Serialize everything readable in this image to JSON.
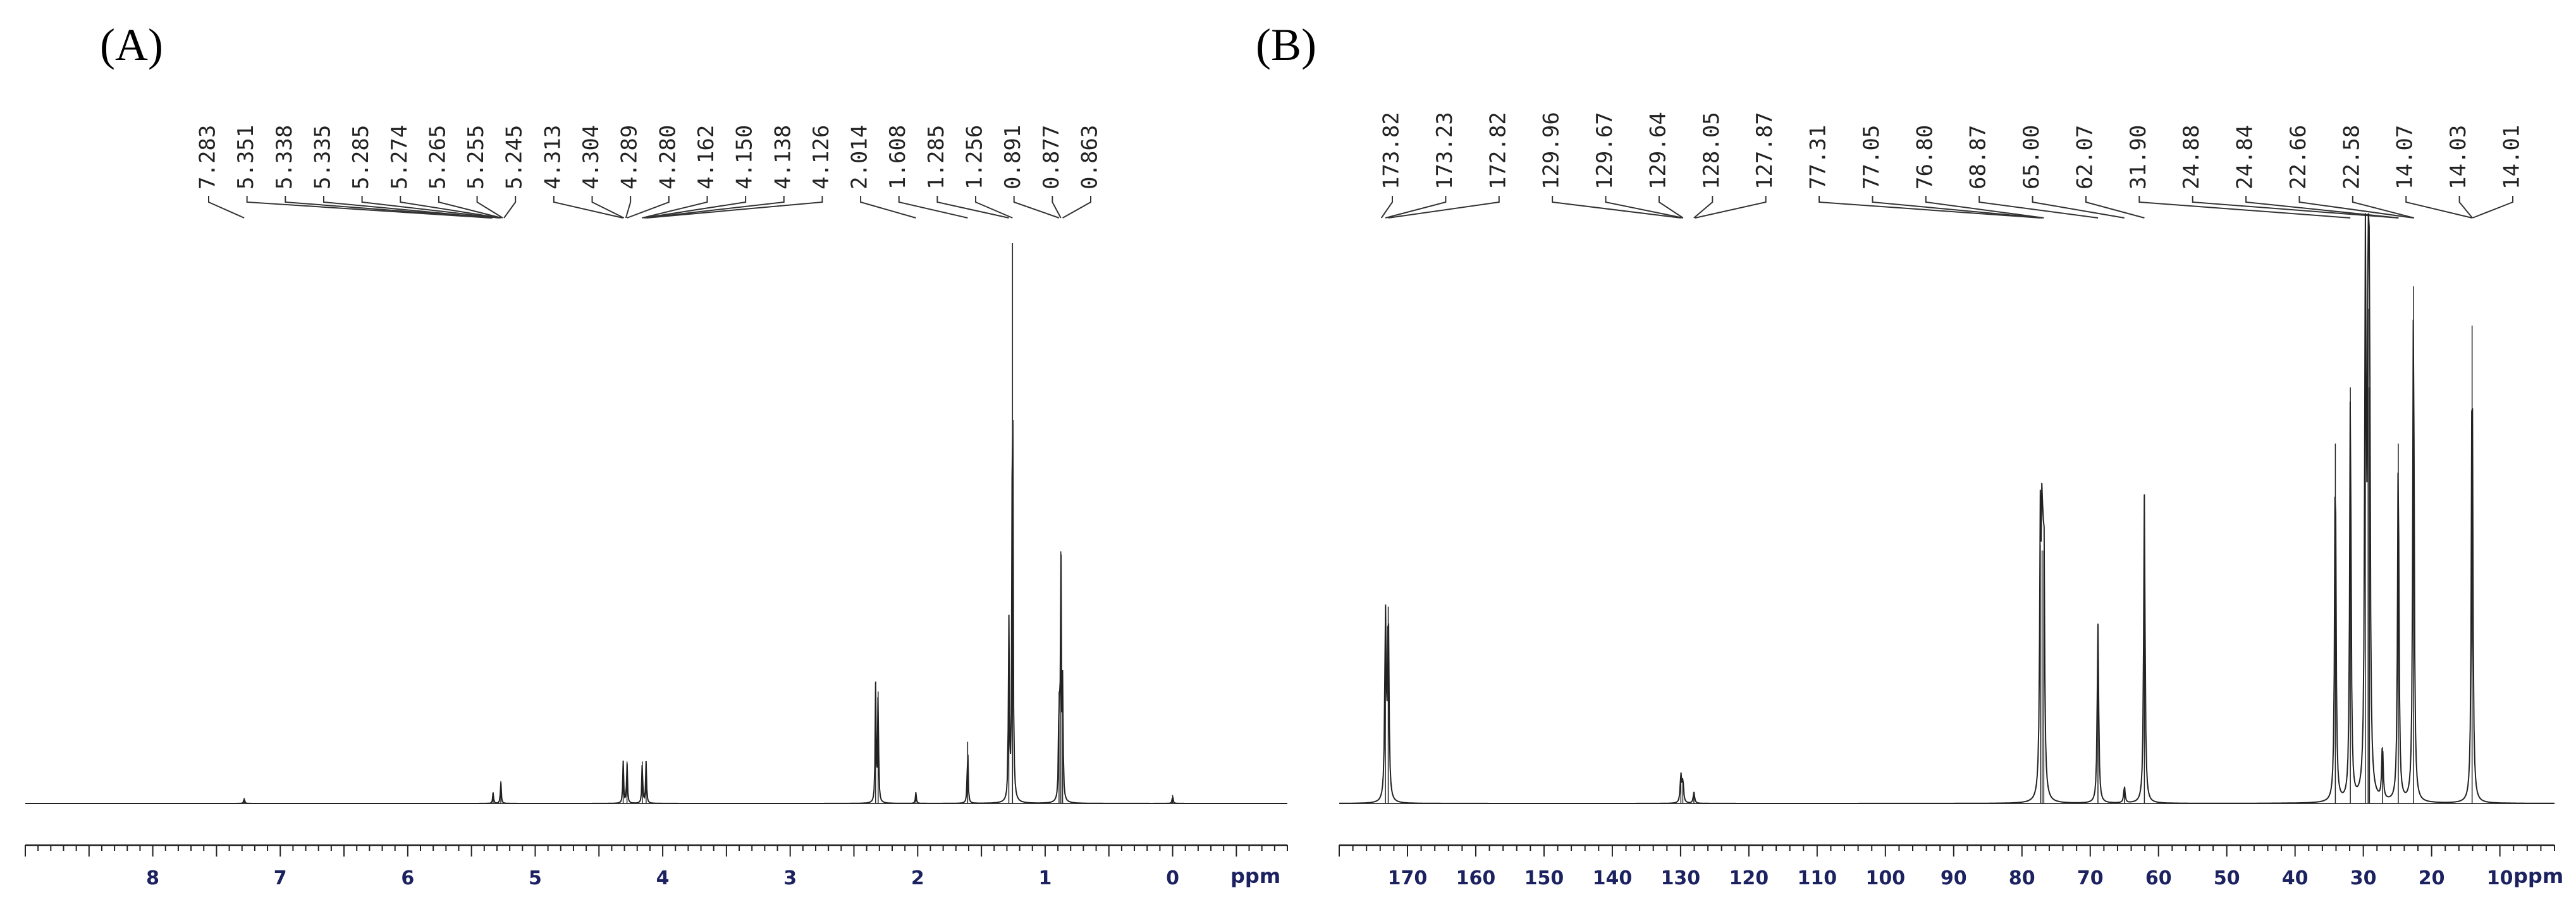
{
  "chart_data": [
    {
      "type": "line",
      "panel_label": "(A)",
      "xlabel": "ppm",
      "xlim": [
        9,
        -0.9
      ],
      "reversed_x": true,
      "ticks": [
        8,
        7,
        6,
        5,
        4,
        3,
        2,
        1,
        0
      ],
      "tick_labels": [
        "8",
        "7",
        "6",
        "5",
        "4",
        "3",
        "2",
        "1",
        "0"
      ],
      "peak_labels": [
        "7.283",
        "5.351",
        "5.338",
        "5.335",
        "5.285",
        "5.274",
        "5.265",
        "5.255",
        "5.245",
        "4.313",
        "4.304",
        "4.289",
        "4.280",
        "4.162",
        "4.150",
        "4.138",
        "4.126",
        "2.014",
        "1.608",
        "1.285",
        "1.256",
        "0.891",
        "0.877",
        "0.863"
      ],
      "peaks": [
        {
          "x": 7.283,
          "y": 0.01
        },
        {
          "x": 5.33,
          "y": 0.02
        },
        {
          "x": 5.27,
          "y": 0.04
        },
        {
          "x": 4.31,
          "y": 0.075
        },
        {
          "x": 4.28,
          "y": 0.075
        },
        {
          "x": 4.16,
          "y": 0.075
        },
        {
          "x": 4.13,
          "y": 0.075
        },
        {
          "x": 2.33,
          "y": 0.21
        },
        {
          "x": 2.31,
          "y": 0.2
        },
        {
          "x": 2.014,
          "y": 0.02
        },
        {
          "x": 1.608,
          "y": 0.11
        },
        {
          "x": 1.285,
          "y": 0.33
        },
        {
          "x": 1.256,
          "y": 1.0
        },
        {
          "x": 0.891,
          "y": 0.2
        },
        {
          "x": 0.877,
          "y": 0.45
        },
        {
          "x": 0.863,
          "y": 0.2
        },
        {
          "x": 0.0,
          "y": 0.015
        }
      ]
    },
    {
      "type": "line",
      "panel_label": "(B)",
      "xlabel": "ppm",
      "xlim": [
        180,
        2
      ],
      "reversed_x": true,
      "ticks": [
        170,
        160,
        150,
        140,
        130,
        120,
        110,
        100,
        90,
        80,
        70,
        60,
        50,
        40,
        30,
        20,
        10
      ],
      "tick_labels": [
        "170",
        "160",
        "150",
        "140",
        "130",
        "120",
        "110",
        "100",
        "90",
        "80",
        "70",
        "60",
        "50",
        "40",
        "30",
        "20",
        "10"
      ],
      "peak_labels": [
        "173.82",
        "173.23",
        "172.82",
        "129.96",
        "129.67",
        "129.64",
        "128.05",
        "127.87",
        "77.31",
        "77.05",
        "76.80",
        "68.87",
        "65.00",
        "62.07",
        "31.90",
        "24.88",
        "24.84",
        "22.66",
        "22.58",
        "14.07",
        "14.03",
        "14.01"
      ],
      "peaks": [
        {
          "x": 173.23,
          "y": 0.33
        },
        {
          "x": 172.82,
          "y": 0.35
        },
        {
          "x": 129.96,
          "y": 0.05
        },
        {
          "x": 129.67,
          "y": 0.04
        },
        {
          "x": 128.05,
          "y": 0.02
        },
        {
          "x": 77.31,
          "y": 0.46
        },
        {
          "x": 77.05,
          "y": 0.45
        },
        {
          "x": 76.8,
          "y": 0.45
        },
        {
          "x": 68.87,
          "y": 0.32
        },
        {
          "x": 65.0,
          "y": 0.03
        },
        {
          "x": 62.07,
          "y": 0.55
        },
        {
          "x": 34.1,
          "y": 0.64
        },
        {
          "x": 31.9,
          "y": 0.74
        },
        {
          "x": 29.7,
          "y": 1.0
        },
        {
          "x": 29.3,
          "y": 0.88
        },
        {
          "x": 29.1,
          "y": 0.74
        },
        {
          "x": 27.2,
          "y": 0.1
        },
        {
          "x": 24.88,
          "y": 0.64
        },
        {
          "x": 22.66,
          "y": 0.92
        },
        {
          "x": 14.07,
          "y": 0.85
        }
      ]
    }
  ]
}
